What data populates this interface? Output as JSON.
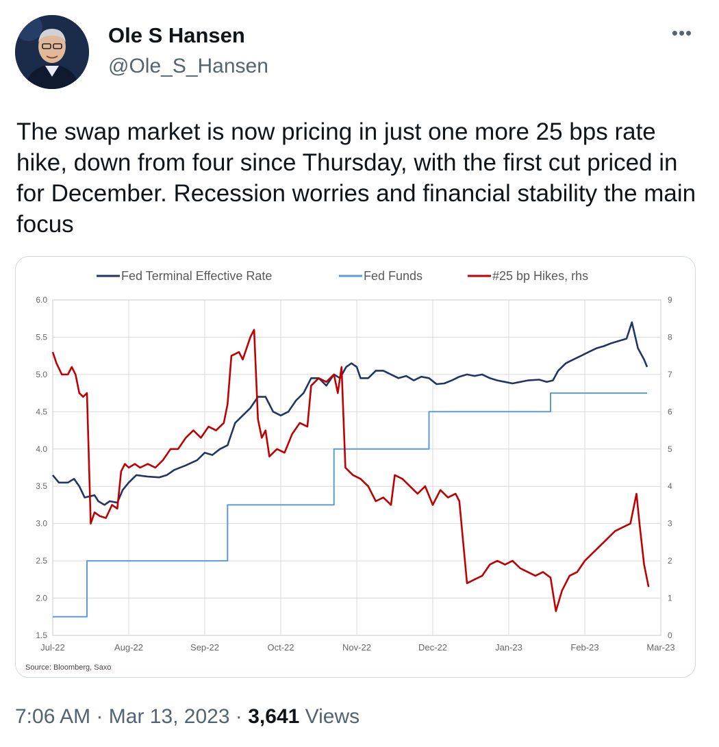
{
  "tweet": {
    "author_name": "Ole S Hansen",
    "handle": "@Ole_S_Hansen",
    "more_icon": "more-horizontal-icon",
    "text": "The swap market is now pricing in just one more 25 bps rate hike, down from four since Thursday, with the first cut priced in for December. Recession worries and financial stability the main focus",
    "time": "7:06 AM",
    "separator": "·",
    "date": "Mar 13, 2023",
    "views_count": "3,641",
    "views_label": "Views"
  },
  "chart_data": {
    "type": "line",
    "source": "Source: Bloomberg, Saxo",
    "legend_position": "top",
    "grid": true,
    "x_ticks": [
      "Jul-22",
      "Aug-22",
      "Sep-22",
      "Oct-22",
      "Nov-22",
      "Dec-22",
      "Jan-23",
      "Feb-23",
      "Mar-23"
    ],
    "y_left_ticks": [
      "6.0",
      "5.5",
      "5.0",
      "4.5",
      "4.0",
      "3.5",
      "3.0",
      "2.5",
      "2.0",
      "1.5"
    ],
    "y_right_ticks": [
      "9",
      "8",
      "7",
      "6",
      "5",
      "4",
      "3",
      "2",
      "1",
      "0"
    ],
    "ylim_left": [
      1.5,
      6.0
    ],
    "ylim_right": [
      0,
      9
    ],
    "x_range_months": [
      0,
      8
    ],
    "series": [
      {
        "name": "Fed Terminal Effective Rate",
        "axis": "left",
        "color": "#1f3566",
        "points": [
          [
            0,
            3.65
          ],
          [
            0.08,
            3.55
          ],
          [
            0.2,
            3.55
          ],
          [
            0.28,
            3.6
          ],
          [
            0.35,
            3.5
          ],
          [
            0.42,
            3.35
          ],
          [
            0.55,
            3.38
          ],
          [
            0.6,
            3.3
          ],
          [
            0.68,
            3.25
          ],
          [
            0.75,
            3.3
          ],
          [
            0.85,
            3.28
          ],
          [
            0.92,
            3.45
          ],
          [
            1.0,
            3.55
          ],
          [
            1.1,
            3.65
          ],
          [
            1.25,
            3.63
          ],
          [
            1.4,
            3.62
          ],
          [
            1.5,
            3.65
          ],
          [
            1.6,
            3.72
          ],
          [
            1.75,
            3.78
          ],
          [
            1.9,
            3.85
          ],
          [
            2.0,
            3.95
          ],
          [
            2.1,
            3.92
          ],
          [
            2.2,
            4.0
          ],
          [
            2.3,
            4.05
          ],
          [
            2.4,
            4.35
          ],
          [
            2.5,
            4.45
          ],
          [
            2.6,
            4.55
          ],
          [
            2.7,
            4.7
          ],
          [
            2.8,
            4.7
          ],
          [
            2.9,
            4.5
          ],
          [
            3.0,
            4.45
          ],
          [
            3.1,
            4.5
          ],
          [
            3.2,
            4.65
          ],
          [
            3.3,
            4.75
          ],
          [
            3.4,
            4.95
          ],
          [
            3.5,
            4.95
          ],
          [
            3.6,
            4.85
          ],
          [
            3.7,
            5.0
          ],
          [
            3.78,
            4.95
          ],
          [
            3.86,
            5.1
          ],
          [
            3.93,
            5.15
          ],
          [
            4.0,
            5.1
          ],
          [
            4.05,
            4.95
          ],
          [
            4.15,
            4.95
          ],
          [
            4.25,
            5.05
          ],
          [
            4.35,
            5.05
          ],
          [
            4.45,
            5.0
          ],
          [
            4.55,
            4.95
          ],
          [
            4.65,
            4.98
          ],
          [
            4.75,
            4.92
          ],
          [
            4.85,
            4.97
          ],
          [
            4.95,
            4.95
          ],
          [
            5.05,
            4.87
          ],
          [
            5.15,
            4.88
          ],
          [
            5.25,
            4.92
          ],
          [
            5.35,
            4.97
          ],
          [
            5.45,
            5.0
          ],
          [
            5.55,
            4.98
          ],
          [
            5.65,
            5.0
          ],
          [
            5.75,
            4.95
          ],
          [
            5.85,
            4.92
          ],
          [
            5.95,
            4.9
          ],
          [
            6.05,
            4.88
          ],
          [
            6.15,
            4.9
          ],
          [
            6.25,
            4.92
          ],
          [
            6.4,
            4.93
          ],
          [
            6.5,
            4.9
          ],
          [
            6.58,
            4.92
          ],
          [
            6.65,
            5.05
          ],
          [
            6.75,
            5.15
          ],
          [
            6.85,
            5.2
          ],
          [
            6.95,
            5.25
          ],
          [
            7.05,
            5.3
          ],
          [
            7.15,
            5.35
          ],
          [
            7.25,
            5.38
          ],
          [
            7.35,
            5.42
          ],
          [
            7.45,
            5.45
          ],
          [
            7.55,
            5.48
          ],
          [
            7.62,
            5.7
          ],
          [
            7.7,
            5.35
          ],
          [
            7.78,
            5.2
          ],
          [
            7.82,
            5.1
          ]
        ]
      },
      {
        "name": "Fed Funds",
        "axis": "left",
        "color": "#5b9bd5",
        "points": [
          [
            0,
            1.75
          ],
          [
            0.45,
            1.75
          ],
          [
            0.45,
            2.5
          ],
          [
            2.3,
            2.5
          ],
          [
            2.3,
            3.25
          ],
          [
            3.7,
            3.25
          ],
          [
            3.7,
            4.0
          ],
          [
            4.95,
            4.0
          ],
          [
            4.95,
            4.5
          ],
          [
            6.55,
            4.5
          ],
          [
            6.55,
            4.75
          ],
          [
            7.82,
            4.75
          ]
        ]
      },
      {
        "name": "#25 bp Hikes, rhs",
        "axis": "right",
        "color": "#c00000",
        "points": [
          [
            0,
            7.6
          ],
          [
            0.05,
            7.3
          ],
          [
            0.12,
            7.0
          ],
          [
            0.2,
            7.0
          ],
          [
            0.25,
            7.2
          ],
          [
            0.3,
            7.0
          ],
          [
            0.35,
            6.5
          ],
          [
            0.4,
            6.4
          ],
          [
            0.45,
            6.5
          ],
          [
            0.5,
            3.0
          ],
          [
            0.55,
            3.3
          ],
          [
            0.62,
            3.2
          ],
          [
            0.7,
            3.15
          ],
          [
            0.78,
            3.5
          ],
          [
            0.85,
            3.4
          ],
          [
            0.9,
            4.4
          ],
          [
            0.95,
            4.6
          ],
          [
            1.0,
            4.5
          ],
          [
            1.08,
            4.6
          ],
          [
            1.15,
            4.5
          ],
          [
            1.25,
            4.6
          ],
          [
            1.35,
            4.5
          ],
          [
            1.45,
            4.7
          ],
          [
            1.55,
            5.0
          ],
          [
            1.65,
            5.0
          ],
          [
            1.75,
            5.3
          ],
          [
            1.85,
            5.5
          ],
          [
            1.95,
            5.3
          ],
          [
            2.05,
            5.6
          ],
          [
            2.15,
            5.5
          ],
          [
            2.25,
            5.7
          ],
          [
            2.3,
            6.2
          ],
          [
            2.35,
            7.5
          ],
          [
            2.45,
            7.6
          ],
          [
            2.5,
            7.4
          ],
          [
            2.6,
            8.0
          ],
          [
            2.65,
            8.2
          ],
          [
            2.7,
            5.8
          ],
          [
            2.75,
            5.3
          ],
          [
            2.8,
            5.5
          ],
          [
            2.85,
            4.8
          ],
          [
            2.95,
            5.0
          ],
          [
            3.05,
            4.9
          ],
          [
            3.15,
            5.4
          ],
          [
            3.25,
            5.7
          ],
          [
            3.35,
            5.6
          ],
          [
            3.4,
            6.7
          ],
          [
            3.5,
            6.9
          ],
          [
            3.6,
            6.8
          ],
          [
            3.7,
            7.0
          ],
          [
            3.75,
            6.5
          ],
          [
            3.8,
            7.2
          ],
          [
            3.85,
            4.5
          ],
          [
            3.95,
            4.3
          ],
          [
            4.05,
            4.2
          ],
          [
            4.15,
            4.0
          ],
          [
            4.25,
            3.6
          ],
          [
            4.35,
            3.7
          ],
          [
            4.45,
            3.5
          ],
          [
            4.5,
            4.3
          ],
          [
            4.6,
            4.2
          ],
          [
            4.7,
            4.0
          ],
          [
            4.8,
            3.8
          ],
          [
            4.9,
            4.0
          ],
          [
            5.0,
            3.5
          ],
          [
            5.1,
            3.9
          ],
          [
            5.2,
            3.7
          ],
          [
            5.3,
            3.8
          ],
          [
            5.35,
            3.6
          ],
          [
            5.45,
            1.4
          ],
          [
            5.55,
            1.5
          ],
          [
            5.65,
            1.6
          ],
          [
            5.75,
            1.9
          ],
          [
            5.85,
            2.0
          ],
          [
            5.95,
            1.9
          ],
          [
            6.05,
            2.0
          ],
          [
            6.15,
            1.8
          ],
          [
            6.25,
            1.7
          ],
          [
            6.35,
            1.6
          ],
          [
            6.45,
            1.7
          ],
          [
            6.55,
            1.55
          ],
          [
            6.62,
            0.65
          ],
          [
            6.7,
            1.2
          ],
          [
            6.8,
            1.6
          ],
          [
            6.9,
            1.7
          ],
          [
            7.0,
            2.0
          ],
          [
            7.1,
            2.2
          ],
          [
            7.2,
            2.4
          ],
          [
            7.3,
            2.6
          ],
          [
            7.4,
            2.8
          ],
          [
            7.5,
            2.9
          ],
          [
            7.6,
            3.0
          ],
          [
            7.68,
            3.8
          ],
          [
            7.72,
            3.0
          ],
          [
            7.78,
            1.9
          ],
          [
            7.84,
            1.3
          ]
        ]
      }
    ]
  }
}
